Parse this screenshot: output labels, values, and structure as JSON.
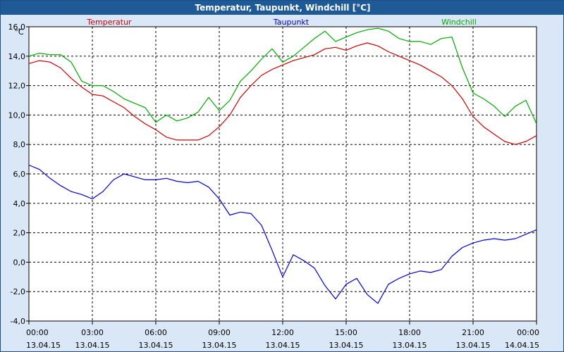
{
  "window": {
    "title": "Temperatur, Taupunkt, Windchill [°C]"
  },
  "chart_data": {
    "type": "line",
    "title": "Temperatur, Taupunkt, Windchill [°C]",
    "ylabel": "°C",
    "ylim": [
      -4,
      16
    ],
    "yticks": [
      "16,0",
      "14,0",
      "12,0",
      "10,0",
      "8,0",
      "6,0",
      "4,0",
      "2,0",
      "0,0",
      "-2,0",
      "-4,0"
    ],
    "xlim": [
      0,
      24
    ],
    "xticks": [
      {
        "time": "00:00",
        "date": "13.04.15"
      },
      {
        "time": "03:00",
        "date": "13.04.15"
      },
      {
        "time": "06:00",
        "date": "13.04.15"
      },
      {
        "time": "09:00",
        "date": "13.04.15"
      },
      {
        "time": "12:00",
        "date": "13.04.15"
      },
      {
        "time": "15:00",
        "date": "13.04.15"
      },
      {
        "time": "18:00",
        "date": "13.04.15"
      },
      {
        "time": "21:00",
        "date": "13.04.15"
      },
      {
        "time": "00:00",
        "date": "14.04.15"
      }
    ],
    "grid": true,
    "legend_placement": "top",
    "x_hours": [
      0,
      0.5,
      1,
      1.5,
      2,
      2.5,
      3,
      3.5,
      4,
      4.5,
      5,
      5.5,
      6,
      6.5,
      7,
      7.5,
      8,
      8.5,
      9,
      9.5,
      10,
      10.5,
      11,
      11.5,
      12,
      12.5,
      13,
      13.5,
      14,
      14.5,
      15,
      15.5,
      16,
      16.5,
      17,
      17.5,
      18,
      18.5,
      19,
      19.5,
      20,
      20.5,
      21,
      21.5,
      22,
      22.5,
      23,
      23.5,
      24
    ],
    "series": [
      {
        "name": "Temperatur",
        "color": "#cc0000",
        "values": [
          13.5,
          13.7,
          13.6,
          13.2,
          12.5,
          11.9,
          11.4,
          11.3,
          10.9,
          10.5,
          9.9,
          9.4,
          9.0,
          8.5,
          8.3,
          8.3,
          8.3,
          8.6,
          9.2,
          10.0,
          11.2,
          12.0,
          12.7,
          13.1,
          13.4,
          13.7,
          13.9,
          14.1,
          14.5,
          14.6,
          14.4,
          14.7,
          14.9,
          14.7,
          14.3,
          14.0,
          13.7,
          13.4,
          13.0,
          12.6,
          12.0,
          11.1,
          9.9,
          9.2,
          8.7,
          8.2,
          8.0,
          8.2,
          8.6
        ]
      },
      {
        "name": "Taupunkt",
        "color": "#0000cc",
        "values": [
          6.6,
          6.3,
          5.7,
          5.2,
          4.8,
          4.6,
          4.3,
          4.8,
          5.6,
          6.0,
          5.8,
          5.6,
          5.6,
          5.7,
          5.5,
          5.4,
          5.5,
          5.1,
          4.3,
          3.2,
          3.4,
          3.3,
          2.5,
          0.8,
          -1.0,
          0.5,
          0.1,
          -0.4,
          -1.6,
          -2.5,
          -1.5,
          -1.1,
          -2.2,
          -2.8,
          -1.5,
          -1.1,
          -0.8,
          -0.6,
          -0.7,
          -0.5,
          0.4,
          1.0,
          1.3,
          1.5,
          1.6,
          1.5,
          1.6,
          1.9,
          2.2
        ]
      },
      {
        "name": "Windchill",
        "color": "#00aa00",
        "values": [
          14.0,
          14.2,
          14.1,
          14.1,
          13.6,
          12.3,
          12.0,
          12.0,
          11.6,
          11.1,
          10.8,
          10.5,
          9.5,
          10.0,
          9.6,
          9.8,
          10.2,
          11.2,
          10.3,
          11.0,
          12.3,
          13.0,
          13.8,
          14.5,
          13.6,
          14.0,
          14.6,
          15.2,
          15.7,
          15.0,
          15.3,
          15.6,
          15.8,
          15.9,
          15.7,
          15.2,
          15.0,
          15.0,
          14.8,
          15.2,
          15.3,
          13.2,
          11.5,
          11.1,
          10.6,
          9.9,
          10.6,
          11.0,
          9.4
        ]
      }
    ]
  }
}
